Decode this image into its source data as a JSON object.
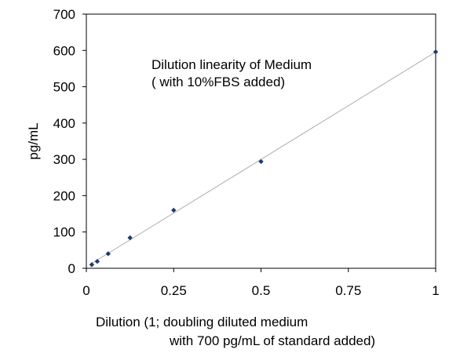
{
  "chart_data": {
    "type": "scatter",
    "annotation": [
      "Dilution linearity of Medium",
      "( with 10%FBS added)"
    ],
    "xlabel": [
      "Dilution (1; doubling diluted medium",
      "with 700 pg/mL of standard added)"
    ],
    "ylabel": "pg/mL",
    "xlim": [
      0,
      1
    ],
    "ylim": [
      0,
      700
    ],
    "x_ticks": [
      0,
      0.25,
      0.5,
      0.75,
      1
    ],
    "x_tick_labels": [
      "0",
      "0.25",
      "0.5",
      "0.75",
      "1"
    ],
    "y_ticks": [
      0,
      100,
      200,
      300,
      400,
      500,
      600,
      700
    ],
    "y_tick_labels": [
      "0",
      "100",
      "200",
      "300",
      "400",
      "500",
      "600",
      "700"
    ],
    "grid": false,
    "legend": "none",
    "trendline": "linear",
    "series": [
      {
        "x": [
          0.015625,
          0.03125,
          0.0625,
          0.125,
          0.25,
          0.5,
          1
        ],
        "y": [
          10,
          19,
          40,
          84,
          160,
          294,
          596
        ],
        "marker_color": "#1f3a6e",
        "line_color": "#b0b0b0"
      }
    ]
  }
}
